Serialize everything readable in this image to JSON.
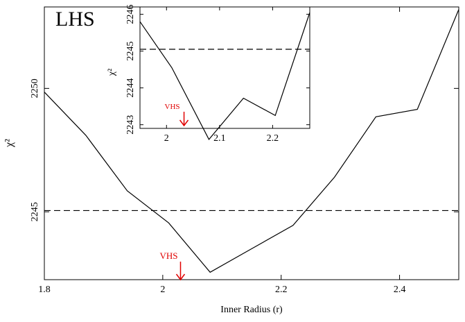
{
  "chart_data": [
    {
      "type": "line",
      "panel_label": "LHS",
      "xlabel": "Inner Radius (r)",
      "ylabel": "χ²",
      "xlim": [
        1.8,
        2.5
      ],
      "ylim": [
        2242.25,
        2253.3
      ],
      "xticks": [
        1.8,
        2.0,
        2.2,
        2.4
      ],
      "xtick_labels": [
        "1.8",
        "2",
        "2.2",
        "2.4"
      ],
      "yticks": [
        2245,
        2250
      ],
      "ytick_labels": [
        "2245",
        "2250"
      ],
      "series": [
        {
          "x": [
            1.8,
            1.87,
            1.94,
            2.01,
            2.08,
            2.15,
            2.22,
            2.29,
            2.36,
            2.43,
            2.5
          ],
          "y": [
            2249.85,
            2248.1,
            2245.85,
            2244.55,
            2242.55,
            2243.5,
            2244.45,
            2246.4,
            2248.85,
            2249.15,
            2253.2
          ]
        }
      ],
      "reference_line": {
        "y": 2245.05,
        "style": "dashed"
      },
      "marker": {
        "label": "VHS",
        "x": 2.03,
        "color": "#e00000"
      }
    },
    {
      "type": "line",
      "inset": true,
      "ylabel": "χ²",
      "xlim": [
        1.95,
        2.27
      ],
      "ylim": [
        2242.9,
        2246.2
      ],
      "xticks": [
        2.0,
        2.1,
        2.2
      ],
      "xtick_labels": [
        "2",
        "2.1",
        "2.2"
      ],
      "yticks": [
        2243,
        2244,
        2245,
        2246
      ],
      "ytick_labels": [
        "2243",
        "2244",
        "2245",
        "2246"
      ],
      "series": [
        {
          "x": [
            1.95,
            2.01,
            2.08,
            2.145,
            2.205,
            2.27
          ],
          "y": [
            2245.8,
            2244.55,
            2242.6,
            2243.72,
            2243.25,
            2246.05
          ]
        }
      ],
      "reference_line": {
        "y": 2245.05,
        "style": "dashed"
      },
      "marker": {
        "label": "VHS",
        "x": 2.033,
        "color": "#e00000"
      }
    }
  ]
}
